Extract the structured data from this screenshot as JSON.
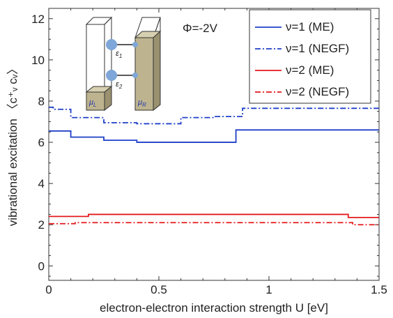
{
  "chart_data": {
    "type": "line",
    "title": "",
    "xlabel": "electron-electron interaction strength U [eV]",
    "ylabel_main": "vibrational excitation ",
    "ylabel_math": "〈c⁺ᵥ cᵥ〉",
    "xlim": [
      0,
      1.5
    ],
    "ylim": [
      -0.7,
      12.5
    ],
    "xticks": [
      0,
      0.5,
      1,
      1.5
    ],
    "xtick_labels": [
      "0",
      "0.5",
      "1",
      "1.5"
    ],
    "yticks": [
      0,
      2,
      4,
      6,
      8,
      10,
      12
    ],
    "ytick_labels": [
      "0",
      "2",
      "4",
      "6",
      "8",
      "10",
      "12"
    ],
    "grid": false,
    "legend_position": "top-right",
    "annotation": "Φ=-2V",
    "series": [
      {
        "name": "ν=1 (ME)",
        "color": "#1f3fc8",
        "dash": "solid",
        "x": [
          0,
          0.1,
          0.1,
          0.25,
          0.25,
          0.4,
          0.4,
          0.85,
          0.85,
          1.5
        ],
        "y": [
          6.55,
          6.55,
          6.25,
          6.25,
          6.1,
          6.1,
          6.0,
          6.0,
          6.6,
          6.6
        ]
      },
      {
        "name": "ν=1 (NEGF)",
        "color": "#1f3fc8",
        "dash": "dashdot",
        "x": [
          0,
          0.02,
          0.02,
          0.1,
          0.1,
          0.25,
          0.25,
          0.4,
          0.4,
          0.6,
          0.6,
          0.75,
          0.75,
          0.88,
          0.88,
          1.5
        ],
        "y": [
          7.7,
          7.7,
          7.6,
          7.6,
          7.2,
          7.2,
          6.95,
          6.95,
          6.9,
          6.9,
          7.2,
          7.2,
          7.25,
          7.25,
          7.65,
          7.65
        ]
      },
      {
        "name": "ν=2 (ME)",
        "color": "#e31a1c",
        "dash": "solid",
        "x": [
          0,
          0.18,
          0.18,
          1.36,
          1.36,
          1.5
        ],
        "y": [
          2.4,
          2.4,
          2.5,
          2.5,
          2.35,
          2.35
        ]
      },
      {
        "name": "ν=2 (NEGF)",
        "color": "#e31a1c",
        "dash": "dashdot",
        "x": [
          0,
          0.12,
          0.12,
          1.38,
          1.38,
          1.5
        ],
        "y": [
          2.05,
          2.05,
          2.1,
          2.1,
          2.0,
          2.0
        ]
      }
    ],
    "inset": {
      "left_lead_label": "μ",
      "left_lead_sub": "L",
      "right_lead_label": "μ",
      "right_lead_sub": "R",
      "level1_label": "ε",
      "level1_sub": "1",
      "level2_label": "ε",
      "level2_sub": "2",
      "lead_color": "#bdb48f",
      "dot_color": "#7ea6d8"
    }
  }
}
